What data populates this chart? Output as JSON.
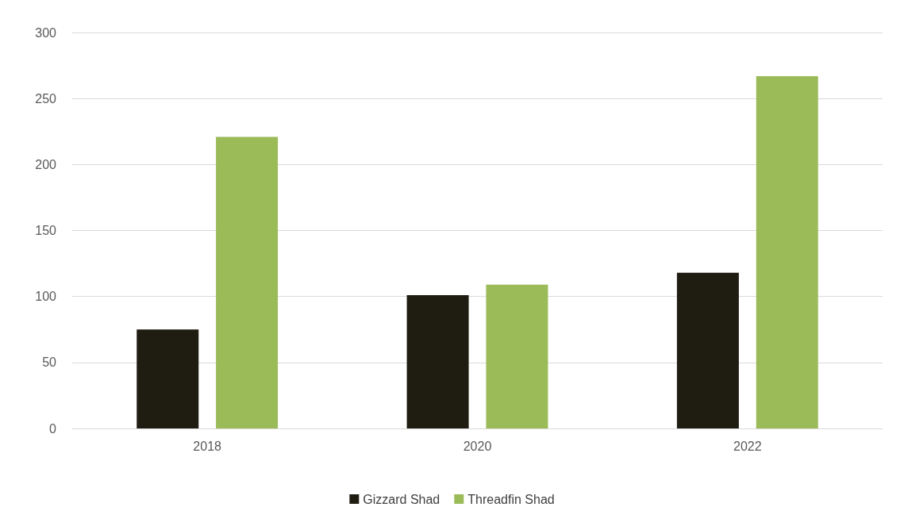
{
  "chart_data": {
    "type": "bar",
    "categories": [
      "2018",
      "2020",
      "2022"
    ],
    "series": [
      {
        "name": "Gizzard Shad",
        "color": "#1f1d12",
        "values": [
          75,
          101,
          118
        ]
      },
      {
        "name": "Threadfin Shad",
        "color": "#9bbb59",
        "values": [
          221,
          109,
          267
        ]
      }
    ],
    "ylim": [
      0,
      300
    ],
    "yticks": [
      0,
      50,
      100,
      150,
      200,
      250,
      300
    ],
    "grid": "y",
    "legend": "bottom"
  }
}
